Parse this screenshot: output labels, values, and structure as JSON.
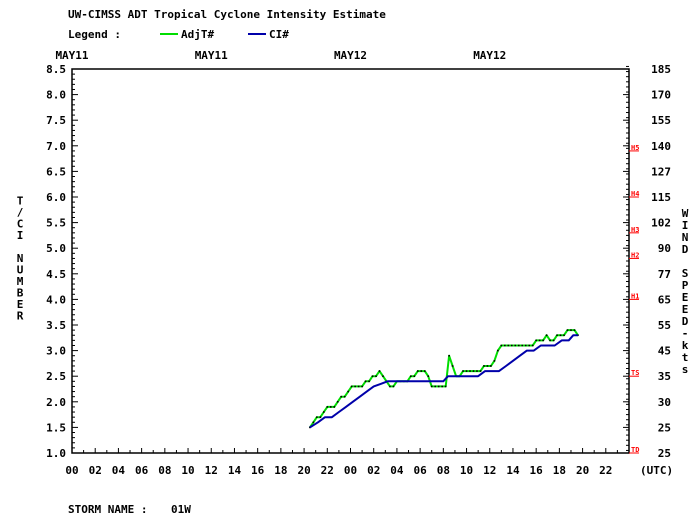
{
  "chart_data": {
    "type": "line",
    "title": "UW-CIMSS ADT Tropical Cyclone Intensity Estimate",
    "legend": {
      "label": "Legend :",
      "placement": "top-left",
      "entries": [
        {
          "name": "AdjT#",
          "color": "#00dd00"
        },
        {
          "name": "CI#",
          "color": "#0000aa"
        }
      ]
    },
    "date_labels": [
      {
        "text": "MAY11",
        "hour": 0
      },
      {
        "text": "MAY11",
        "hour": 12
      },
      {
        "text": "MAY12",
        "hour": 24
      },
      {
        "text": "MAY12",
        "hour": 36
      }
    ],
    "x_tick_labels": [
      "00",
      "02",
      "04",
      "06",
      "08",
      "10",
      "12",
      "14",
      "16",
      "18",
      "20",
      "22",
      "00",
      "02",
      "04",
      "06",
      "08",
      "10",
      "12",
      "14",
      "16",
      "18",
      "20",
      "22"
    ],
    "x_unit_label": "(UTC)",
    "xlim": [
      0,
      48
    ],
    "y_left_label": "T/CI NUMBER",
    "y_left_ticks": [
      "1.0",
      "1.5",
      "2.0",
      "2.5",
      "3.0",
      "3.5",
      "4.0",
      "4.5",
      "5.0",
      "5.5",
      "6.0",
      "6.5",
      "7.0",
      "7.5",
      "8.0",
      "8.5"
    ],
    "ylim": [
      1.0,
      8.5
    ],
    "y_right_label": "WIND SPEED-kts",
    "y_right_ticks": [
      {
        "t": 1.0,
        "label": "25"
      },
      {
        "t": 1.5,
        "label": "25"
      },
      {
        "t": 2.0,
        "label": "30"
      },
      {
        "t": 2.5,
        "label": "35"
      },
      {
        "t": 3.0,
        "label": "45"
      },
      {
        "t": 3.5,
        "label": "55"
      },
      {
        "t": 4.0,
        "label": "65"
      },
      {
        "t": 4.5,
        "label": "77"
      },
      {
        "t": 5.0,
        "label": "90"
      },
      {
        "t": 5.5,
        "label": "102"
      },
      {
        "t": 6.0,
        "label": "115"
      },
      {
        "t": 6.5,
        "label": "127"
      },
      {
        "t": 7.0,
        "label": "140"
      },
      {
        "t": 7.5,
        "label": "155"
      },
      {
        "t": 8.0,
        "label": "170"
      },
      {
        "t": 8.5,
        "label": "185"
      }
    ],
    "category_markers": [
      {
        "label": "TD",
        "t": 1.0
      },
      {
        "label": "TS",
        "t": 2.5
      },
      {
        "label": "H1",
        "t": 4.0
      },
      {
        "label": "H2",
        "t": 4.8
      },
      {
        "label": "H3",
        "t": 5.3
      },
      {
        "label": "H4",
        "t": 6.0
      },
      {
        "label": "H5",
        "t": 6.9
      }
    ],
    "grid": false,
    "series": [
      {
        "name": "AdjT#",
        "color": "#00dd00",
        "points": [
          [
            20.5,
            1.5
          ],
          [
            20.8,
            1.6
          ],
          [
            21.1,
            1.7
          ],
          [
            21.4,
            1.7
          ],
          [
            21.7,
            1.8
          ],
          [
            22.0,
            1.9
          ],
          [
            22.3,
            1.9
          ],
          [
            22.6,
            1.9
          ],
          [
            22.9,
            2.0
          ],
          [
            23.2,
            2.1
          ],
          [
            23.5,
            2.1
          ],
          [
            23.8,
            2.2
          ],
          [
            24.1,
            2.3
          ],
          [
            24.4,
            2.3
          ],
          [
            24.7,
            2.3
          ],
          [
            25.0,
            2.3
          ],
          [
            25.3,
            2.4
          ],
          [
            25.6,
            2.4
          ],
          [
            25.9,
            2.5
          ],
          [
            26.2,
            2.5
          ],
          [
            26.5,
            2.6
          ],
          [
            26.8,
            2.5
          ],
          [
            27.1,
            2.4
          ],
          [
            27.4,
            2.3
          ],
          [
            27.7,
            2.3
          ],
          [
            28.0,
            2.4
          ],
          [
            28.3,
            2.4
          ],
          [
            28.6,
            2.4
          ],
          [
            28.9,
            2.4
          ],
          [
            29.2,
            2.5
          ],
          [
            29.5,
            2.5
          ],
          [
            29.8,
            2.6
          ],
          [
            30.1,
            2.6
          ],
          [
            30.4,
            2.6
          ],
          [
            30.7,
            2.5
          ],
          [
            31.0,
            2.3
          ],
          [
            31.3,
            2.3
          ],
          [
            31.6,
            2.3
          ],
          [
            31.9,
            2.3
          ],
          [
            32.2,
            2.3
          ],
          [
            32.5,
            2.9
          ],
          [
            32.8,
            2.7
          ],
          [
            33.1,
            2.5
          ],
          [
            33.4,
            2.5
          ],
          [
            33.7,
            2.6
          ],
          [
            34.0,
            2.6
          ],
          [
            34.3,
            2.6
          ],
          [
            34.6,
            2.6
          ],
          [
            34.9,
            2.6
          ],
          [
            35.2,
            2.6
          ],
          [
            35.5,
            2.7
          ],
          [
            35.8,
            2.7
          ],
          [
            36.1,
            2.7
          ],
          [
            36.4,
            2.8
          ],
          [
            36.7,
            3.0
          ],
          [
            37.0,
            3.1
          ],
          [
            37.3,
            3.1
          ],
          [
            37.6,
            3.1
          ],
          [
            37.9,
            3.1
          ],
          [
            38.2,
            3.1
          ],
          [
            38.5,
            3.1
          ],
          [
            38.8,
            3.1
          ],
          [
            39.1,
            3.1
          ],
          [
            39.4,
            3.1
          ],
          [
            39.7,
            3.1
          ],
          [
            40.0,
            3.2
          ],
          [
            40.3,
            3.2
          ],
          [
            40.6,
            3.2
          ],
          [
            40.9,
            3.3
          ],
          [
            41.2,
            3.2
          ],
          [
            41.5,
            3.2
          ],
          [
            41.8,
            3.3
          ],
          [
            42.1,
            3.3
          ],
          [
            42.4,
            3.3
          ],
          [
            42.7,
            3.4
          ],
          [
            43.0,
            3.4
          ],
          [
            43.3,
            3.4
          ],
          [
            43.6,
            3.3
          ]
        ]
      },
      {
        "name": "CI#",
        "color": "#0000aa",
        "points": [
          [
            20.5,
            1.5
          ],
          [
            21.2,
            1.6
          ],
          [
            21.8,
            1.7
          ],
          [
            22.4,
            1.7
          ],
          [
            23.0,
            1.8
          ],
          [
            23.6,
            1.9
          ],
          [
            24.2,
            2.0
          ],
          [
            24.8,
            2.1
          ],
          [
            25.4,
            2.2
          ],
          [
            26.0,
            2.3
          ],
          [
            26.6,
            2.35
          ],
          [
            27.2,
            2.4
          ],
          [
            28.0,
            2.4
          ],
          [
            29.0,
            2.4
          ],
          [
            30.0,
            2.4
          ],
          [
            31.0,
            2.4
          ],
          [
            32.0,
            2.4
          ],
          [
            32.4,
            2.5
          ],
          [
            33.0,
            2.5
          ],
          [
            34.0,
            2.5
          ],
          [
            35.0,
            2.5
          ],
          [
            35.6,
            2.6
          ],
          [
            36.2,
            2.6
          ],
          [
            36.8,
            2.6
          ],
          [
            37.4,
            2.7
          ],
          [
            38.0,
            2.8
          ],
          [
            38.6,
            2.9
          ],
          [
            39.2,
            3.0
          ],
          [
            39.8,
            3.0
          ],
          [
            40.4,
            3.1
          ],
          [
            41.0,
            3.1
          ],
          [
            41.6,
            3.1
          ],
          [
            42.2,
            3.2
          ],
          [
            42.8,
            3.2
          ],
          [
            43.2,
            3.3
          ],
          [
            43.6,
            3.3
          ]
        ]
      }
    ]
  },
  "storm": {
    "label": "STORM NAME :",
    "name": "01W"
  }
}
